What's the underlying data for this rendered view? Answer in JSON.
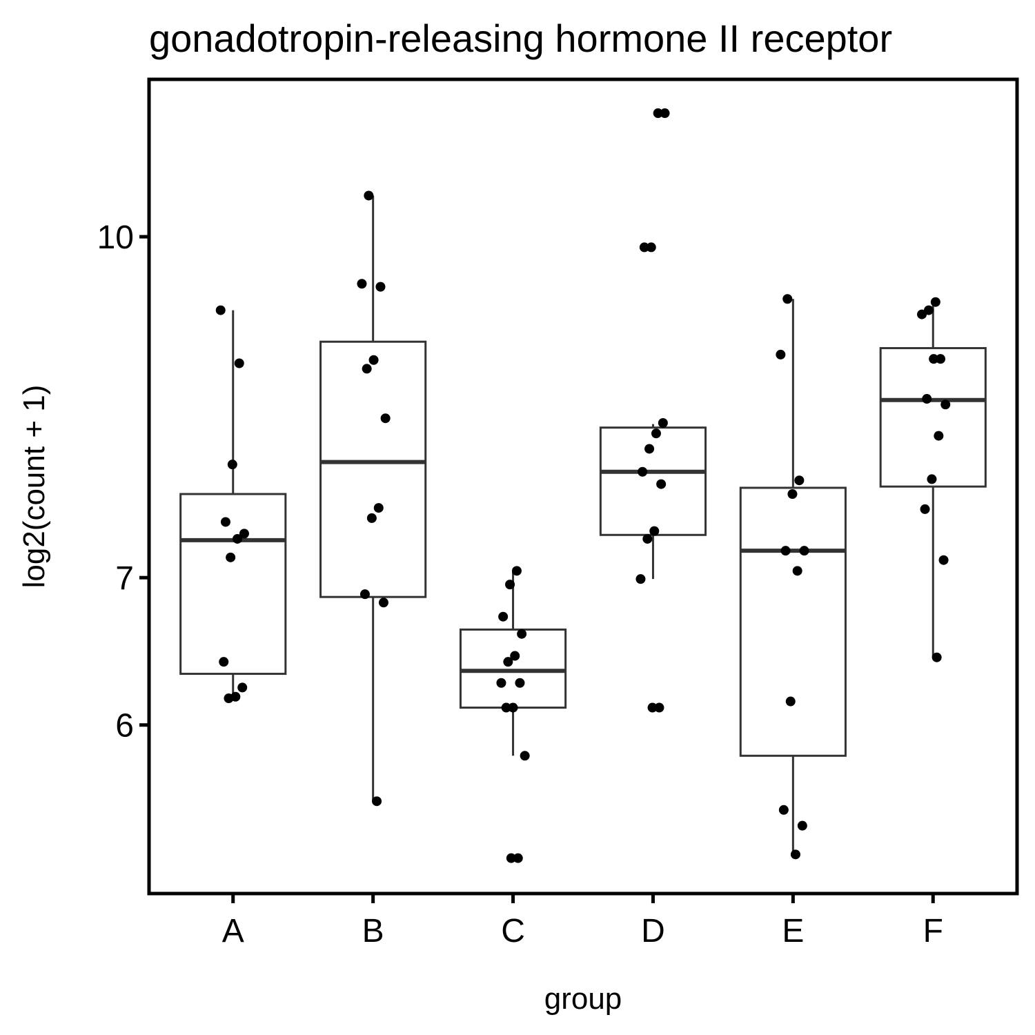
{
  "chart_data": {
    "type": "box",
    "title": "gonadotropin-releasing hormone II receptor",
    "x_label": "group",
    "y_label": "log2(count + 1)",
    "categories": [
      "A",
      "B",
      "C",
      "D",
      "E",
      "F"
    ],
    "y_scale": "log",
    "ylim": [
      5.03,
      11.79
    ],
    "yticks": [
      6,
      7,
      10
    ],
    "box_color": "#333333",
    "point_color": "#000000",
    "boxes": [
      {
        "whisker_low": 6.18,
        "q1": 6.33,
        "median": 7.28,
        "q3": 7.64,
        "whisker_high": 9.26
      },
      {
        "whisker_low": 5.54,
        "q1": 6.86,
        "median": 7.9,
        "q3": 8.96,
        "whisker_high": 10.44
      },
      {
        "whisker_low": 5.81,
        "q1": 6.11,
        "median": 6.35,
        "q3": 6.63,
        "whisker_high": 7.05
      },
      {
        "whisker_low": 6.99,
        "q1": 7.32,
        "median": 7.82,
        "q3": 8.19,
        "whisker_high": 8.22
      },
      {
        "whisker_low": 5.24,
        "q1": 5.81,
        "median": 7.2,
        "q3": 7.69,
        "whisker_high": 9.37
      },
      {
        "whisker_low": 6.44,
        "q1": 7.7,
        "median": 8.43,
        "q3": 8.9,
        "whisker_high": 9.34
      }
    ],
    "points": [
      [
        9.26,
        8.76,
        7.88,
        7.42,
        7.33,
        7.29,
        7.15,
        6.41,
        6.24,
        6.18,
        6.17
      ],
      [
        10.44,
        9.52,
        9.49,
        8.79,
        8.71,
        8.27,
        7.53,
        7.45,
        6.88,
        6.82,
        5.54
      ],
      [
        7.05,
        6.95,
        6.72,
        6.6,
        6.45,
        6.41,
        6.27,
        6.27,
        6.11,
        6.11,
        5.81,
        5.22,
        5.22
      ],
      [
        11.38,
        11.38,
        9.89,
        9.89,
        8.23,
        8.14,
        8.01,
        7.82,
        7.72,
        7.35,
        7.29,
        6.99,
        6.11,
        6.11
      ],
      [
        9.37,
        8.84,
        7.75,
        7.64,
        7.2,
        7.2,
        7.05,
        6.15,
        5.49,
        5.4,
        5.24
      ],
      [
        9.34,
        9.26,
        9.22,
        8.8,
        8.8,
        8.44,
        8.39,
        8.12,
        7.76,
        7.52,
        7.13,
        6.44
      ]
    ]
  }
}
